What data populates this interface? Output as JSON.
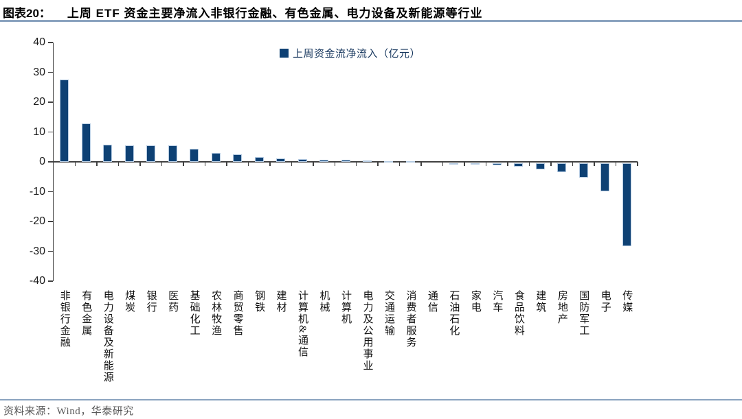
{
  "header": {
    "label": "图表20：",
    "title": "上周 ETF 资金主要净流入非银行金融、有色金属、电力设备及新能源等行业"
  },
  "legend": {
    "label": "上周资金流净流入（亿元）"
  },
  "footer": {
    "source": "资料来源：Wind，华泰研究"
  },
  "colors": {
    "bar_fill": "#0e4174",
    "bar_border": "#b5cbe2",
    "legend_text": "#17375e",
    "axis_line": "#404040",
    "rule_line": "#8aa3bf",
    "tick_label": "#1a1a1a",
    "source_text": "#595959"
  },
  "chart_data": {
    "type": "bar",
    "title": "上周ETF资金主要净流入非银行金融、有色金属、电力设备及新能源等行业",
    "legend": "上周资金流净流入（亿元）",
    "xlabel": "",
    "ylabel": "亿元",
    "ylim": [
      -40,
      40
    ],
    "yticks": [
      40,
      30,
      20,
      10,
      0,
      -10,
      -20,
      -30,
      -40
    ],
    "grid": false,
    "legend_position": "top-center",
    "categories": [
      "非银行金融",
      "有色金属",
      "电力设备及新能源",
      "煤炭",
      "银行",
      "医药",
      "基础化工",
      "农林牧渔",
      "商贸零售",
      "钢铁",
      "建材",
      "计算机&通信",
      "机械",
      "计算机",
      "电力及公用事业",
      "交通运输",
      "消费者服务",
      "通信",
      "石油石化",
      "家电",
      "汽车",
      "食品饮料",
      "建筑",
      "房地产",
      "国防军工",
      "电子",
      "传媒"
    ],
    "values": [
      27.5,
      12.9,
      5.7,
      5.6,
      5.5,
      5.5,
      4.3,
      2.9,
      2.5,
      1.7,
      1.2,
      1.0,
      0.8,
      0.7,
      0.5,
      0.2,
      0.1,
      0.0,
      -0.1,
      -0.4,
      -0.7,
      -1.2,
      -2.2,
      -3.0,
      -5.0,
      -9.6,
      -28.0
    ]
  }
}
